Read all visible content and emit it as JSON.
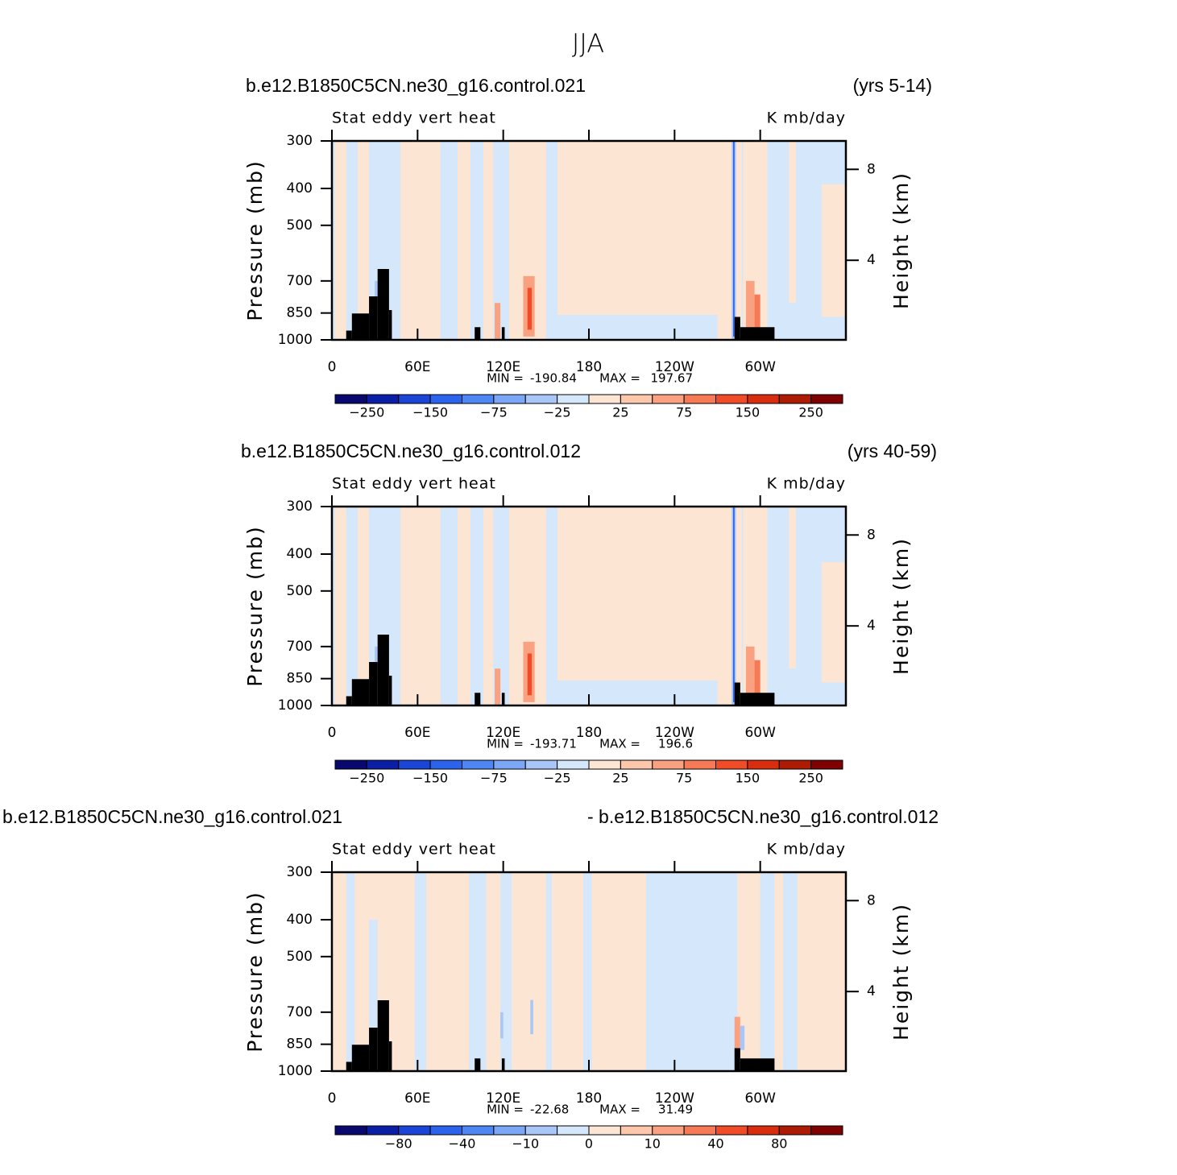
{
  "title": "JJA",
  "chart_data": [
    {
      "type": "contour",
      "left_title": "b.e12.B1850C5CN.ne30_g16.control.021",
      "right_title": "(yrs 5-14)",
      "center_title": "Stat eddy vert heat",
      "units": "K mb/day",
      "ylabel": "Pressure (mb)",
      "y2label": "Height (km)",
      "xlim": [
        0,
        360
      ],
      "xticks": [
        0,
        {
          "value": 60,
          "label": "60E"
        },
        {
          "value": 120,
          "label": "120E"
        },
        180,
        {
          "value": 240,
          "label": "120W"
        },
        {
          "value": 300,
          "label": "60W"
        }
      ],
      "ylim": [
        1000,
        300
      ],
      "ylog": true,
      "yticks": [
        300,
        400,
        500,
        700,
        850,
        1000
      ],
      "y2lim": [
        0.5,
        9.25
      ],
      "y2ticks": [
        8,
        4
      ],
      "min_label": "MIN =",
      "min": -190.84,
      "max_label": "MAX =",
      "max": 197.67,
      "colors": [
        "#08086e",
        "#0b1fa6",
        "#1a45d6",
        "#2b63ec",
        "#4e87f4",
        "#7ba7f6",
        "#a8c7f8",
        "#d4e7fb",
        "#fde5d3",
        "#fcc7ab",
        "#f9a181",
        "#f67a55",
        "#f04c27",
        "#d82e0f",
        "#ad1b05",
        "#7e0202"
      ],
      "colorbar_labels": [
        {
          "value": -250,
          "label": "−250"
        },
        {
          "value": -150,
          "label": "−150"
        },
        {
          "value": -75,
          "label": "−75"
        },
        {
          "value": -25,
          "label": "−25"
        },
        25,
        75,
        150,
        250
      ]
    },
    {
      "type": "contour",
      "left_title": "b.e12.B1850C5CN.ne30_g16.control.012",
      "right_title": "(yrs 40-59)",
      "center_title": "Stat eddy vert heat",
      "units": "K mb/day",
      "ylabel": "Pressure (mb)",
      "y2label": "Height (km)",
      "xlim": [
        0,
        360
      ],
      "xticks": [
        0,
        {
          "value": 60,
          "label": "60E"
        },
        {
          "value": 120,
          "label": "120E"
        },
        180,
        {
          "value": 240,
          "label": "120W"
        },
        {
          "value": 300,
          "label": "60W"
        }
      ],
      "ylim": [
        1000,
        300
      ],
      "ylog": true,
      "yticks": [
        300,
        400,
        500,
        700,
        850,
        1000
      ],
      "y2lim": [
        0.5,
        9.25
      ],
      "y2ticks": [
        8,
        4
      ],
      "min_label": "MIN =",
      "min": -193.71,
      "max_label": "MAX =",
      "max": 196.6,
      "colors": [
        "#08086e",
        "#0b1fa6",
        "#1a45d6",
        "#2b63ec",
        "#4e87f4",
        "#7ba7f6",
        "#a8c7f8",
        "#d4e7fb",
        "#fde5d3",
        "#fcc7ab",
        "#f9a181",
        "#f67a55",
        "#f04c27",
        "#d82e0f",
        "#ad1b05",
        "#7e0202"
      ],
      "colorbar_labels": [
        {
          "value": -250,
          "label": "−250"
        },
        {
          "value": -150,
          "label": "−150"
        },
        {
          "value": -75,
          "label": "−75"
        },
        {
          "value": -25,
          "label": "−25"
        },
        25,
        75,
        150,
        250
      ]
    },
    {
      "type": "contour",
      "left_title": "b.e12.B1850C5CN.ne30_g16.control.021",
      "right_title": "- b.e12.B1850C5CN.ne30_g16.control.012",
      "center_title": "Stat eddy vert heat",
      "units": "K mb/day",
      "ylabel": "Pressure (mb)",
      "y2label": "Height (km)",
      "xlim": [
        0,
        360
      ],
      "xticks": [
        0,
        {
          "value": 60,
          "label": "60E"
        },
        {
          "value": 120,
          "label": "120E"
        },
        180,
        {
          "value": 240,
          "label": "120W"
        },
        {
          "value": 300,
          "label": "60W"
        }
      ],
      "ylim": [
        1000,
        300
      ],
      "ylog": true,
      "yticks": [
        300,
        400,
        500,
        700,
        850,
        1000
      ],
      "y2lim": [
        0.5,
        9.25
      ],
      "y2ticks": [
        8,
        4
      ],
      "min_label": "MIN =",
      "min": -22.68,
      "max_label": "MAX =",
      "max": 31.49,
      "colors": [
        "#08086e",
        "#0b1fa6",
        "#1a45d6",
        "#2b63ec",
        "#4e87f4",
        "#7ba7f6",
        "#a8c7f8",
        "#d4e7fb",
        "#fde5d3",
        "#fcc7ab",
        "#f9a181",
        "#f67a55",
        "#f04c27",
        "#d82e0f",
        "#ad1b05",
        "#7e0202"
      ],
      "colorbar_labels": [
        {
          "value": -80,
          "label": "−80"
        },
        {
          "value": -40,
          "label": "−40"
        },
        {
          "value": -10,
          "label": "−10"
        },
        0,
        10,
        40,
        80
      ]
    }
  ]
}
